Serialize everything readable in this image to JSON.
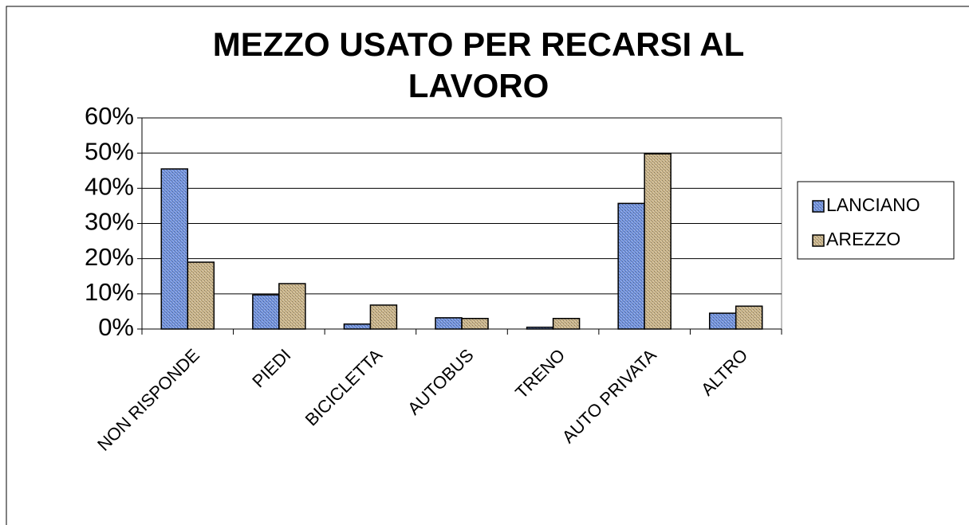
{
  "chart_data": {
    "type": "bar",
    "title": "MEZZO USATO PER RECARSI AL LAVORO",
    "categories": [
      "NON RISPONDE",
      "PIEDI",
      "BICICLETTA",
      "AUTOBUS",
      "TRENO",
      "AUTO  PRIVATA",
      "ALTRO"
    ],
    "series": [
      {
        "name": "LANCIANO",
        "color": "#7393dc",
        "values": [
          45.5,
          9.7,
          1.4,
          3.2,
          0.5,
          35.7,
          4.5
        ]
      },
      {
        "name": "AREZZO",
        "color": "#c9b48a",
        "values": [
          19,
          12.9,
          6.8,
          3,
          3,
          49.8,
          6.5
        ]
      }
    ],
    "ylim": [
      0,
      60
    ],
    "yticks": [
      {
        "value": 0,
        "label": "0%"
      },
      {
        "value": 10,
        "label": "10%"
      },
      {
        "value": 20,
        "label": "20%"
      },
      {
        "value": 30,
        "label": "30%"
      },
      {
        "value": 40,
        "label": "40%"
      },
      {
        "value": 50,
        "label": "50%"
      },
      {
        "value": 60,
        "label": "60%"
      }
    ],
    "grid": true,
    "legend": "right"
  }
}
